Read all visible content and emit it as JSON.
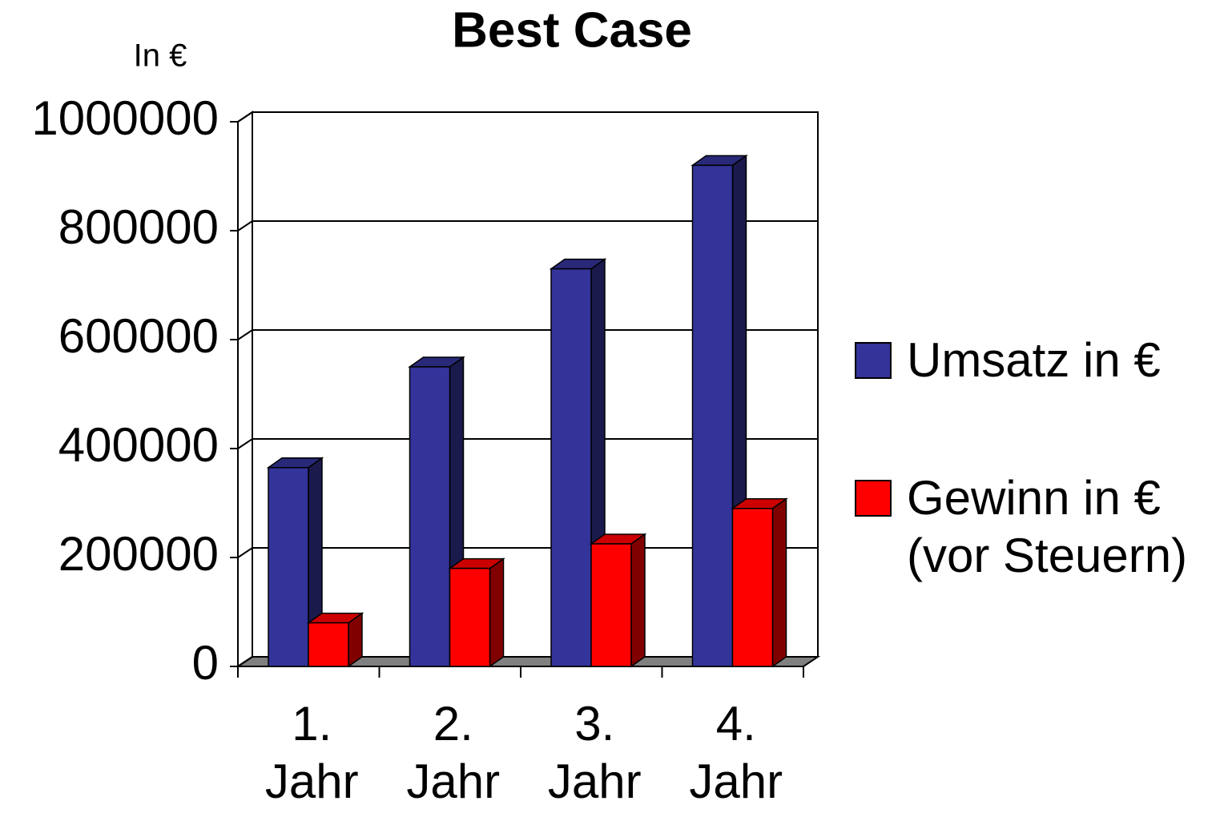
{
  "chart_data": {
    "type": "bar3d",
    "title": "Best Case",
    "y_axis_label": "In €",
    "categories": [
      "1. Jahr",
      "2. Jahr",
      "3. Jahr",
      "4. Jahr"
    ],
    "series": [
      {
        "name": "Umsatz in €",
        "color": "#333399",
        "values": [
          365000,
          550000,
          730000,
          920000
        ]
      },
      {
        "name": "Gewinn in € (vor Steuern)",
        "color": "#ff0000",
        "values": [
          80000,
          180000,
          225000,
          290000
        ]
      }
    ],
    "ylim": [
      0,
      1000000
    ],
    "yticks": [
      0,
      200000,
      400000,
      600000,
      800000,
      1000000
    ],
    "grid": true,
    "legend": "right"
  }
}
